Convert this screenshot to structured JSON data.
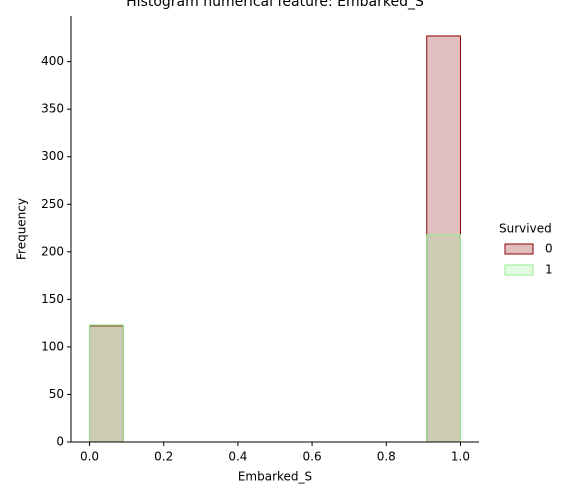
{
  "chart_data": {
    "type": "histogram",
    "title": "Histogram numerical feature: Embarked_S",
    "x_label": "Embarked_S",
    "y_label": "Frequency",
    "bins": [
      0,
      0.0909,
      0.1818,
      0.2727,
      0.3636,
      0.4545,
      0.5455,
      0.6364,
      0.7273,
      0.8182,
      0.9091,
      1
    ],
    "series": [
      {
        "name": "0",
        "color": "#8b0000",
        "values": [
          122,
          0,
          0,
          0,
          0,
          0,
          0,
          0,
          0,
          0,
          427
        ]
      },
      {
        "name": "1",
        "color": "#90ee90",
        "values": [
          123,
          0,
          0,
          0,
          0,
          0,
          0,
          0,
          0,
          0,
          218
        ]
      }
    ],
    "legend_title": "Survived",
    "legend": "right",
    "xlim": [
      -0.05,
      1.05
    ],
    "xticks": [
      {
        "value": 0,
        "label": "0.0"
      },
      0.2,
      0.4,
      0.6,
      0.8,
      {
        "value": 1,
        "label": "1.0"
      }
    ],
    "ylim": [
      0,
      448
    ],
    "yticks": [
      0,
      50,
      100,
      150,
      200,
      250,
      300,
      350,
      400
    ]
  }
}
